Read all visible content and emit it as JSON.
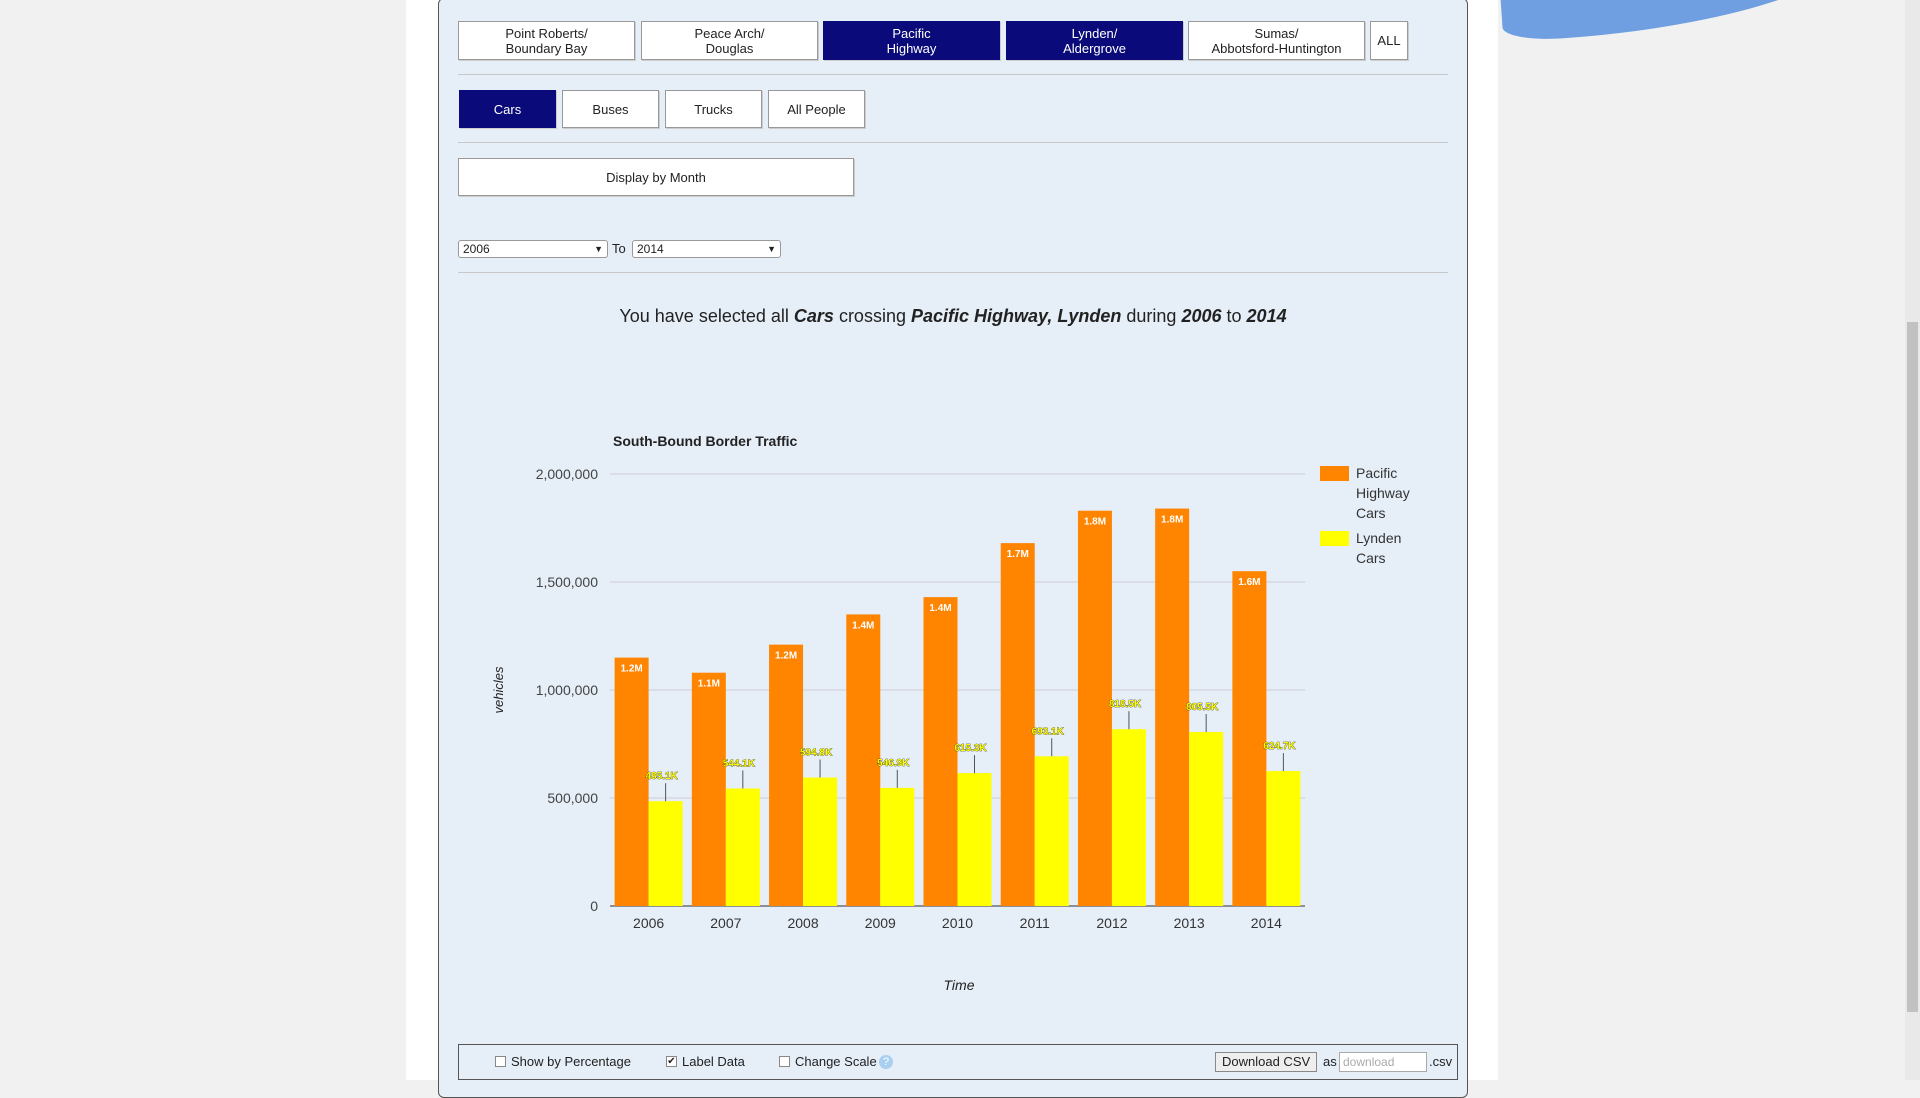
{
  "crossings": [
    {
      "label": "Point Roberts/\nBoundary Bay",
      "active": false
    },
    {
      "label": "Peace Arch/\nDouglas",
      "active": false
    },
    {
      "label": "Pacific\nHighway",
      "active": true
    },
    {
      "label": "Lynden/\nAldergrove",
      "active": true
    },
    {
      "label": "Sumas/\nAbbotsford-Huntington",
      "active": false
    },
    {
      "label": "ALL",
      "active": false
    }
  ],
  "vehicle_types": [
    {
      "label": "Cars",
      "active": true
    },
    {
      "label": "Buses",
      "active": false
    },
    {
      "label": "Trucks",
      "active": false
    },
    {
      "label": "All People",
      "active": false
    }
  ],
  "display_by_month_label": "Display by Month",
  "range": {
    "from": "2006",
    "to_label": "To",
    "to": "2014"
  },
  "summary": {
    "prefix": "You have selected all",
    "vehicle": "Cars",
    "mid": "crossing",
    "crossings": "Pacific Highway, Lynden",
    "during": "during",
    "from": "2006",
    "to_word": "to",
    "to": "2014"
  },
  "chart_data": {
    "type": "bar",
    "title": "South-Bound Border Traffic",
    "xlabel": "Time",
    "ylabel": "vehicles",
    "categories": [
      "2006",
      "2007",
      "2008",
      "2009",
      "2010",
      "2011",
      "2012",
      "2013",
      "2014"
    ],
    "ylim": [
      0,
      2000000
    ],
    "yticks": [
      0,
      500000,
      1000000,
      1500000,
      2000000
    ],
    "ytick_labels": [
      "0",
      "500,000",
      "1,000,000",
      "1,500,000",
      "2,000,000"
    ],
    "grid": true,
    "legend_position": "right",
    "series": [
      {
        "name": "Pacific Highway Cars",
        "color": "#ff8400",
        "values": [
          1150000,
          1080000,
          1210000,
          1350000,
          1430000,
          1680000,
          1830000,
          1840000,
          1550000
        ],
        "labels": [
          "1.2M",
          "1.1M",
          "1.2M",
          "1.4M",
          "1.4M",
          "1.7M",
          "1.8M",
          "1.8M",
          "1.6M"
        ]
      },
      {
        "name": "Lynden Cars",
        "color": "#ffff00",
        "values": [
          485100,
          544100,
          594800,
          546900,
          615300,
          693100,
          818500,
          805500,
          624700
        ],
        "labels": [
          "485.1K",
          "544.1K",
          "594.8K",
          "546.9K",
          "615.3K",
          "693.1K",
          "818.5K",
          "805.5K",
          "624.7K"
        ]
      }
    ]
  },
  "options": {
    "show_percentage": {
      "label": "Show by Percentage",
      "checked": false
    },
    "label_data": {
      "label": "Label Data",
      "checked": true
    },
    "change_scale": {
      "label": "Change Scale",
      "checked": false
    }
  },
  "download": {
    "button_label": "Download CSV",
    "as_label": "as",
    "placeholder": "download",
    "ext": ".csv"
  }
}
